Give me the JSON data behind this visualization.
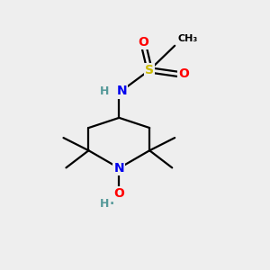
{
  "background_color": "#eeeeee",
  "figsize": [
    3.0,
    3.0
  ],
  "dpi": 100,
  "colors": {
    "N": "#0000ee",
    "O": "#ff0000",
    "S": "#ccbb00",
    "H": "#559999",
    "bond": "#000000"
  },
  "bond_lw": 1.6
}
